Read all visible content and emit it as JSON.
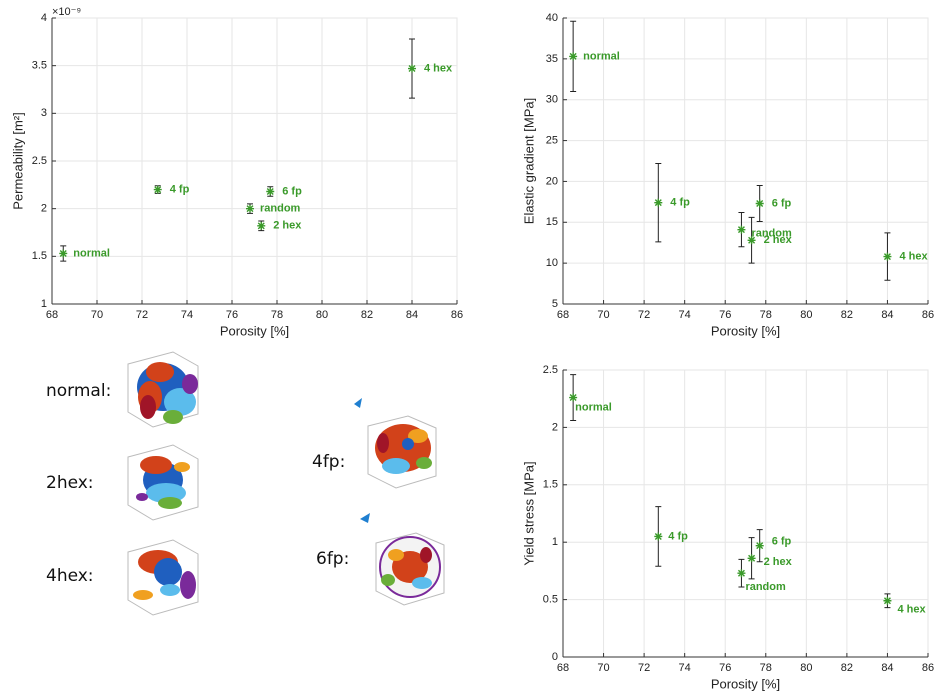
{
  "chart_data": [
    {
      "type": "scatter",
      "xlabel": "Porosity [%]",
      "ylabel": "Permeability [m²]",
      "y_exponent": "×10⁻⁹",
      "xlim": [
        68,
        86
      ],
      "xticks": [
        68,
        70,
        72,
        74,
        76,
        78,
        80,
        82,
        84,
        86
      ],
      "ylim": [
        1,
        4
      ],
      "yticks": [
        1,
        1.5,
        2,
        2.5,
        3,
        3.5,
        4
      ],
      "grid": true,
      "color": "#3a9a2a",
      "x": [
        68.5,
        72.7,
        76.8,
        77.7,
        77.3,
        84.0
      ],
      "values": [
        1.53,
        2.2,
        2.0,
        2.18,
        1.82,
        3.47
      ],
      "errors": [
        0.08,
        0.04,
        0.05,
        0.05,
        0.05,
        0.31
      ],
      "point_labels": [
        "normal",
        "4 fp",
        "random",
        "6 fp",
        "2 hex",
        "4 hex"
      ]
    },
    {
      "type": "scatter",
      "xlabel": "Porosity [%]",
      "ylabel": "Elastic gradient [MPa]",
      "xlim": [
        68,
        86
      ],
      "xticks": [
        68,
        70,
        72,
        74,
        76,
        78,
        80,
        82,
        84,
        86
      ],
      "ylim": [
        5,
        40
      ],
      "yticks": [
        5,
        10,
        15,
        20,
        25,
        30,
        35,
        40
      ],
      "grid": true,
      "color": "#3a9a2a",
      "x": [
        68.5,
        72.7,
        76.8,
        77.3,
        77.7,
        84.0
      ],
      "values": [
        35.3,
        17.4,
        14.1,
        12.8,
        17.3,
        10.8
      ],
      "errors": [
        4.3,
        4.8,
        2.1,
        2.8,
        2.2,
        2.9
      ],
      "point_labels": [
        "normal",
        "4 fp",
        "random",
        "2 hex",
        "6 fp",
        "4 hex"
      ]
    },
    {
      "type": "scatter",
      "xlabel": "Porosity [%]",
      "ylabel": "Yield stress [MPa]",
      "xlim": [
        68,
        86
      ],
      "xticks": [
        68,
        70,
        72,
        74,
        76,
        78,
        80,
        82,
        84,
        86
      ],
      "ylim": [
        0,
        2.5
      ],
      "yticks": [
        0,
        0.5,
        1,
        1.5,
        2,
        2.5
      ],
      "grid": true,
      "color": "#3a9a2a",
      "x": [
        68.5,
        72.7,
        76.8,
        77.3,
        77.7,
        84.0
      ],
      "values": [
        2.26,
        1.05,
        0.73,
        0.86,
        0.97,
        0.49
      ],
      "errors": [
        0.2,
        0.26,
        0.12,
        0.18,
        0.14,
        0.06
      ],
      "point_labels": [
        "normal",
        "4 fp",
        "random",
        "2 hex",
        "6 fp",
        "4 hex"
      ]
    }
  ],
  "structures": {
    "labels": [
      "normal:",
      "2hex:",
      "4hex:",
      "4fp:",
      "6fp:"
    ]
  }
}
